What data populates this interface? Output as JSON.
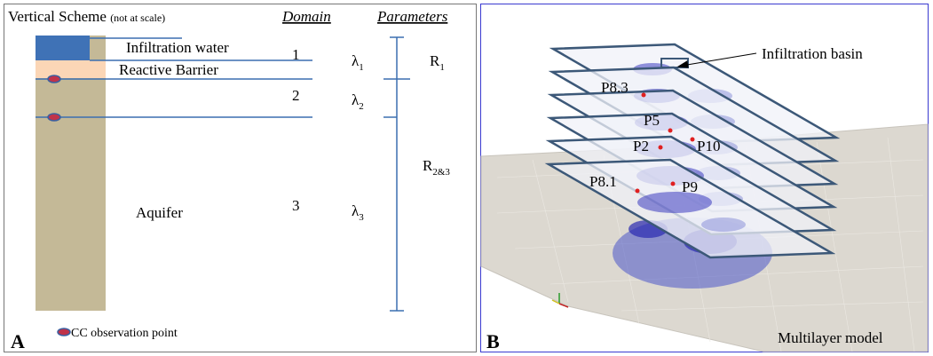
{
  "panel_a": {
    "label": "A",
    "title": "Vertical Scheme",
    "title_note": "(not at scale)",
    "headers": [
      "Domain",
      "Parameters"
    ],
    "layers": [
      "Infiltration water",
      "Reactive Barrier",
      "Aquifer"
    ],
    "domains": [
      "1",
      "2",
      "3"
    ],
    "lambdas": [
      {
        "symbol": "λ",
        "sub": "1"
      },
      {
        "symbol": "λ",
        "sub": "2"
      },
      {
        "symbol": "λ",
        "sub": "3"
      }
    ],
    "resistances": [
      {
        "symbol": "R",
        "sub": "1"
      },
      {
        "symbol": "R",
        "sub": "2&3"
      }
    ],
    "legend": "CC observation point"
  },
  "panel_b": {
    "label": "B",
    "annotation": "Infiltration basin",
    "points": [
      "P8.3",
      "P5",
      "P2",
      "P10",
      "P8.1",
      "P9"
    ],
    "caption": "Multilayer model"
  }
}
